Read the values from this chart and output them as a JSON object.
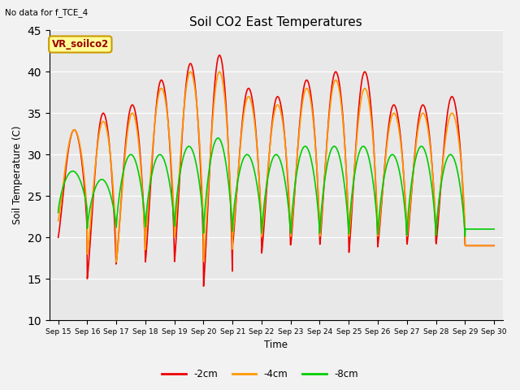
{
  "title": "Soil CO2 East Temperatures",
  "top_left_text": "No data for f_TCE_4",
  "legend_box_label": "VR_soilco2",
  "ylabel": "Soil Temperature (C)",
  "xlabel": "Time",
  "ylim": [
    10,
    45
  ],
  "plot_bg_color": "#e8e8e8",
  "fig_bg_color": "#f2f2f2",
  "line_colors": {
    "neg2cm": "#ee0000",
    "neg4cm": "#ff9900",
    "neg8cm": "#00cc00"
  },
  "xtick_labels": [
    "Sep 15",
    "Sep 16",
    "Sep 17",
    "Sep 18",
    "Sep 19",
    "Sep 20",
    "Sep 21",
    "Sep 22",
    "Sep 23",
    "Sep 24",
    "Sep 25",
    "Sep 26",
    "Sep 27",
    "Sep 28",
    "Sep 29",
    "Sep 30"
  ],
  "ytick_values": [
    10,
    15,
    20,
    25,
    30,
    35,
    40,
    45
  ],
  "peak_red": [
    20,
    33,
    15,
    35,
    17,
    36,
    17,
    39,
    17,
    41,
    14,
    42,
    19,
    38,
    18,
    37,
    19,
    39,
    19,
    40,
    18,
    40,
    19,
    36,
    19,
    36,
    19,
    37,
    19,
    19
  ],
  "peak_orange": [
    22,
    33,
    18,
    34,
    17,
    35,
    20,
    38,
    20,
    40,
    17,
    40,
    20,
    37,
    20,
    36,
    20,
    38,
    20,
    39,
    20,
    38,
    20,
    35,
    20,
    35,
    21,
    35,
    19,
    19
  ],
  "peak_green": [
    23,
    28,
    21,
    27,
    21,
    30,
    21,
    30,
    21,
    31,
    20,
    32,
    21,
    30,
    20,
    30,
    20,
    31,
    20,
    31,
    20,
    31,
    20,
    30,
    20,
    31,
    20,
    30,
    21,
    21
  ]
}
